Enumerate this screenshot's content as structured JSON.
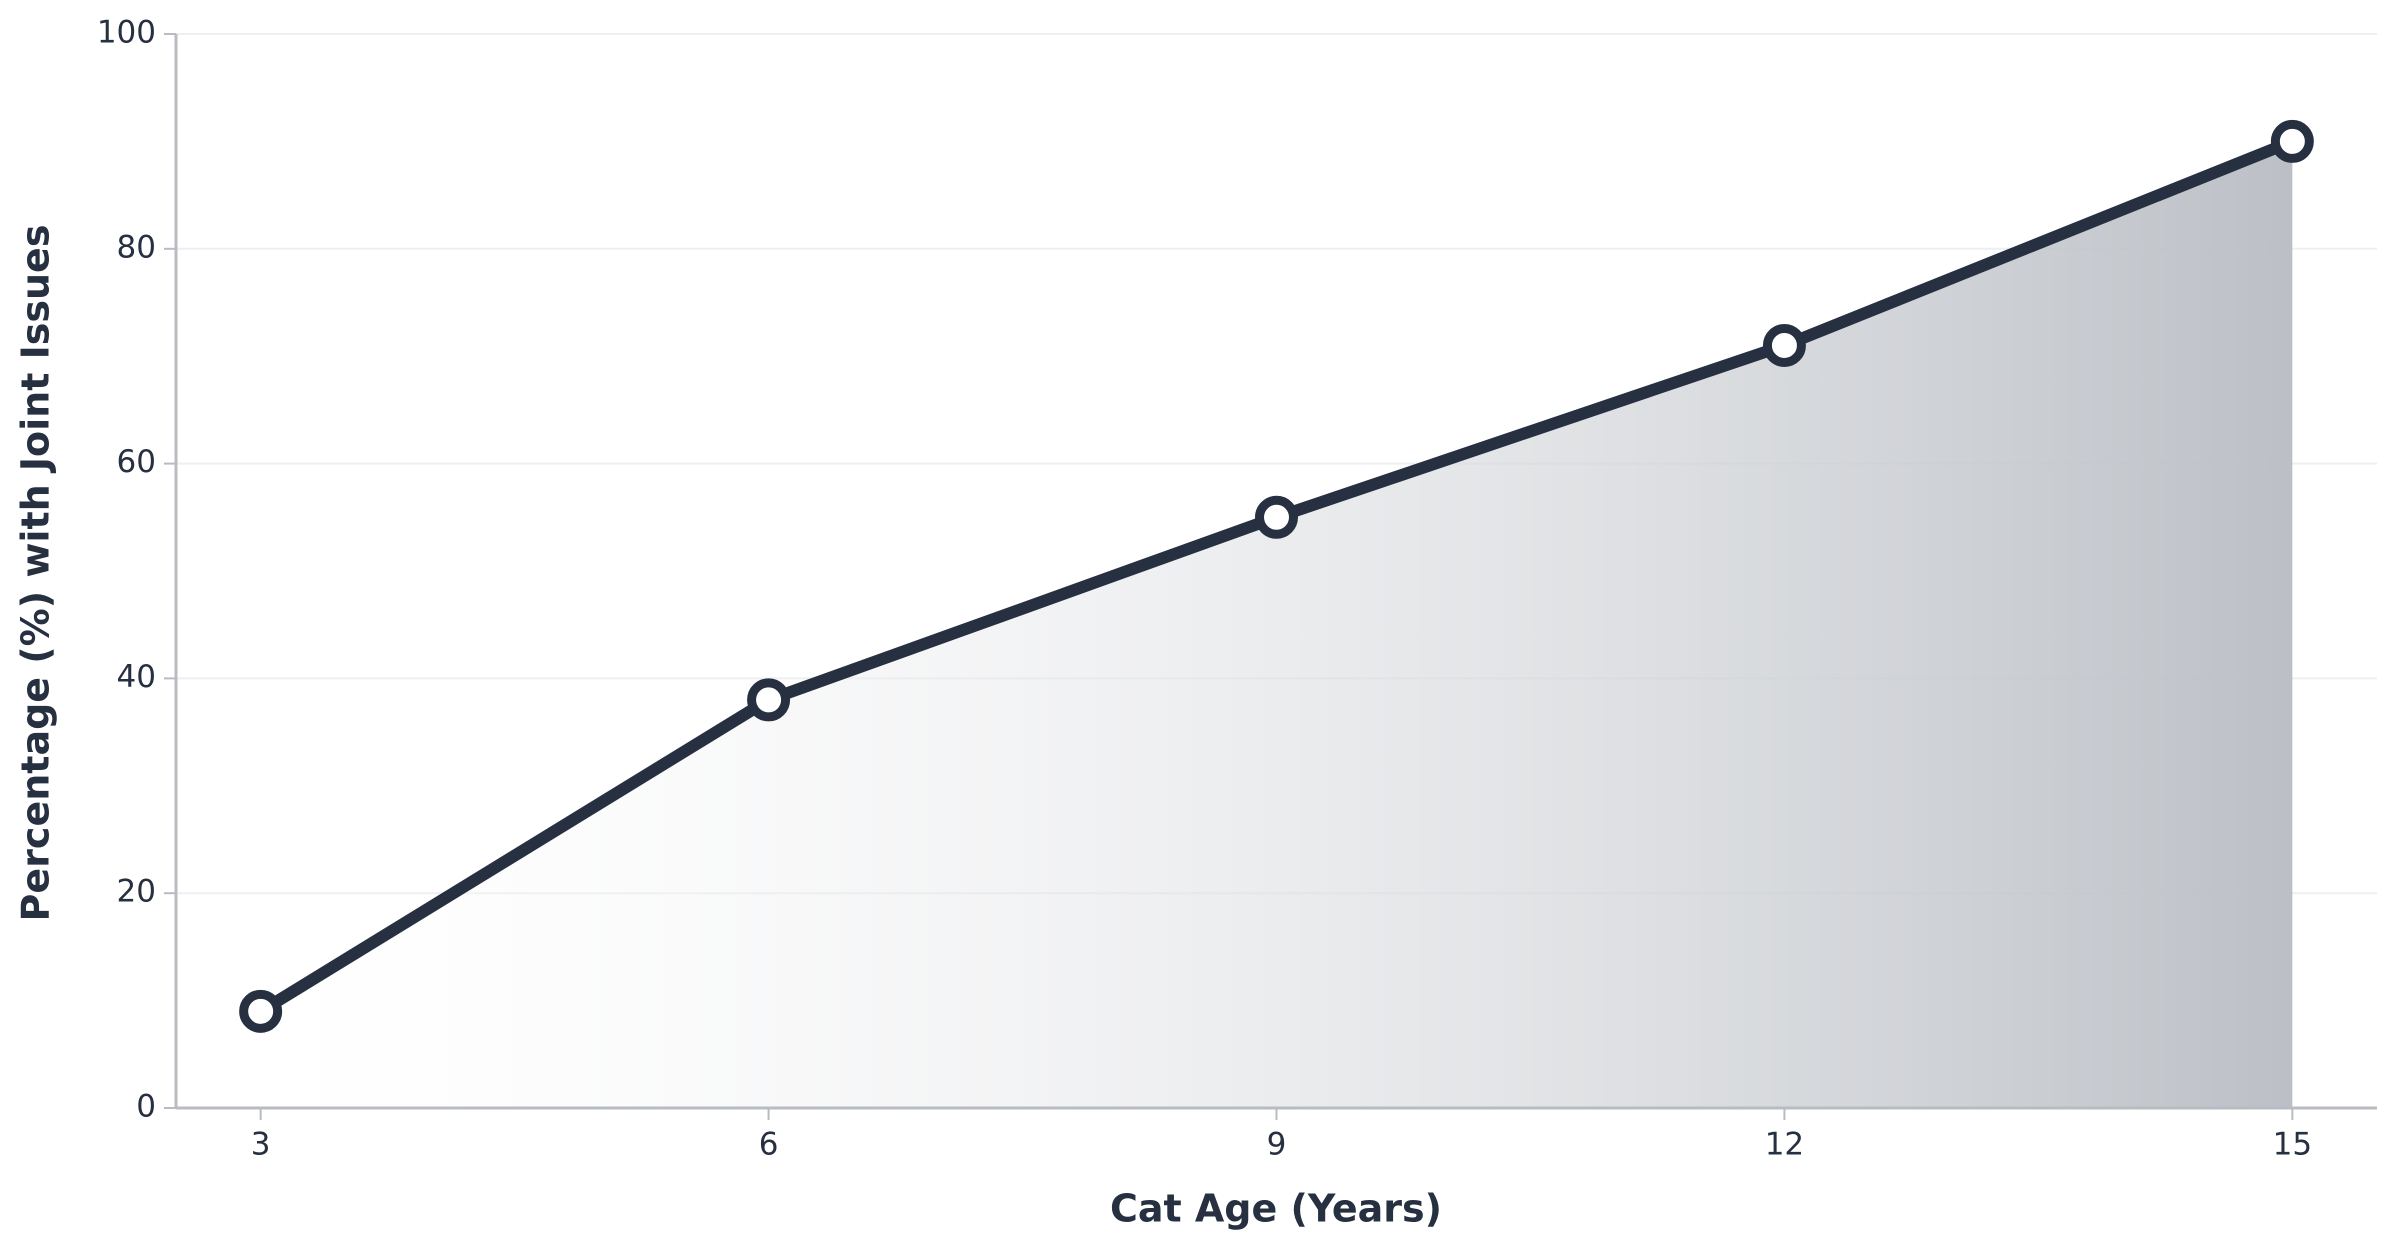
{
  "chart_data": {
    "type": "line",
    "x_label": "Cat Age (Years)",
    "y_label": "Percentage (%) with Joint Issues",
    "x": [
      3,
      6,
      9,
      12,
      15
    ],
    "values": [
      9,
      38,
      55,
      71,
      90
    ],
    "color": "#263041",
    "fill": true,
    "xlim": [
      2.5,
      15.5
    ],
    "xticks": [
      3,
      6,
      9,
      12,
      15
    ],
    "ylim": [
      0,
      100
    ],
    "yticks": [
      0,
      20,
      40,
      60,
      80,
      100
    ],
    "grid": true
  }
}
